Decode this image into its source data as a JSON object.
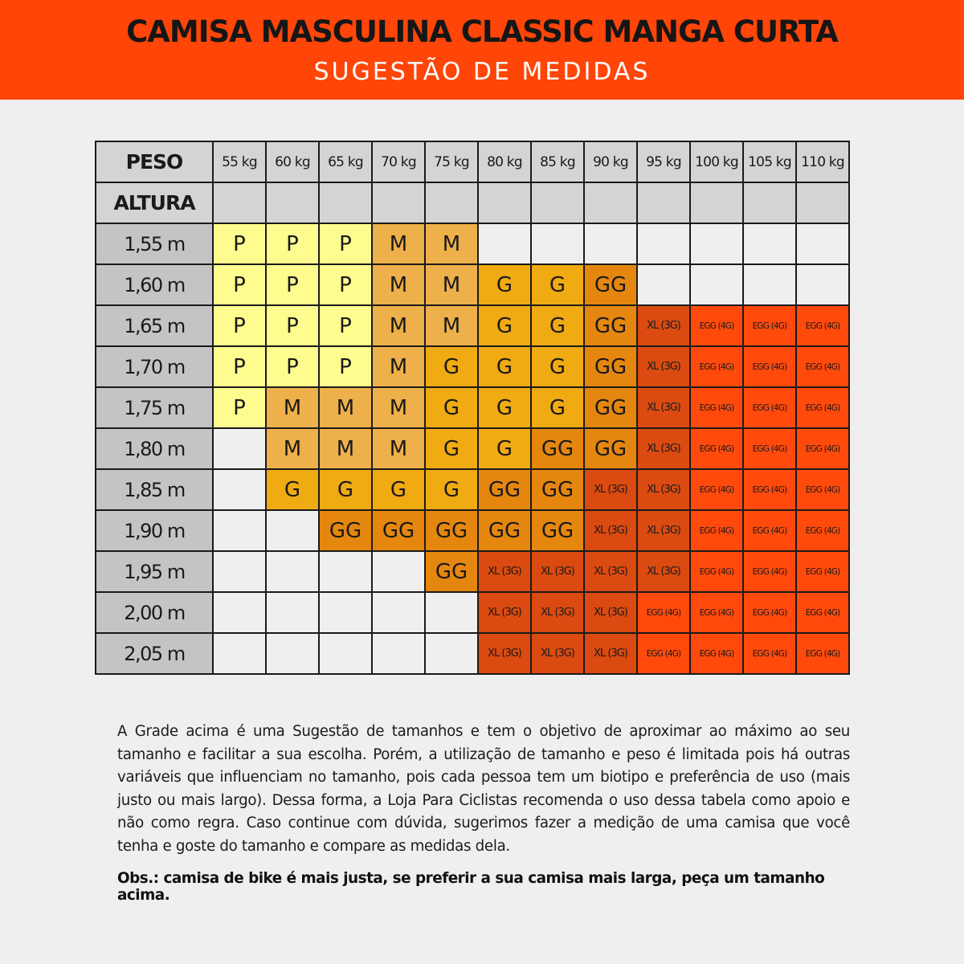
{
  "header": {
    "title": "CAMISA MASCULINA CLASSIC MANGA CURTA",
    "subtitle": "SUGESTÃO DE MEDIDAS",
    "banner_color": "#ff4508"
  },
  "table": {
    "weight_label": "PESO",
    "height_label": "ALTURA",
    "weights": [
      "55 kg",
      "60 kg",
      "65 kg",
      "70 kg",
      "75 kg",
      "80 kg",
      "85 kg",
      "90 kg",
      "95 kg",
      "100 kg",
      "105 kg",
      "110 kg"
    ],
    "size_colors": {
      "P": "#fefc8e",
      "M": "#eeb04a",
      "G": "#f0aa12",
      "GG": "#e5870e",
      "XL (3G)": "#db4a10",
      "EGG (4G)": "#ff4a0c",
      "": "#efefef"
    },
    "rows": [
      {
        "height": "1,55 m",
        "sizes": [
          "P",
          "P",
          "P",
          "M",
          "M",
          "",
          "",
          "",
          "",
          "",
          "",
          ""
        ]
      },
      {
        "height": "1,60 m",
        "sizes": [
          "P",
          "P",
          "P",
          "M",
          "M",
          "G",
          "G",
          "GG",
          "",
          "",
          "",
          ""
        ]
      },
      {
        "height": "1,65 m",
        "sizes": [
          "P",
          "P",
          "P",
          "M",
          "M",
          "G",
          "G",
          "GG",
          "XL (3G)",
          "EGG (4G)",
          "EGG (4G)",
          "EGG (4G)"
        ]
      },
      {
        "height": "1,70 m",
        "sizes": [
          "P",
          "P",
          "P",
          "M",
          "G",
          "G",
          "G",
          "GG",
          "XL (3G)",
          "EGG (4G)",
          "EGG (4G)",
          "EGG (4G)"
        ]
      },
      {
        "height": "1,75 m",
        "sizes": [
          "P",
          "M",
          "M",
          "M",
          "G",
          "G",
          "G",
          "GG",
          "XL (3G)",
          "EGG (4G)",
          "EGG (4G)",
          "EGG (4G)"
        ]
      },
      {
        "height": "1,80 m",
        "sizes": [
          "",
          "M",
          "M",
          "M",
          "G",
          "G",
          "GG",
          "GG",
          "XL (3G)",
          "EGG (4G)",
          "EGG (4G)",
          "EGG (4G)"
        ]
      },
      {
        "height": "1,85 m",
        "sizes": [
          "",
          "G",
          "G",
          "G",
          "G",
          "GG",
          "GG",
          "XL (3G)",
          "XL (3G)",
          "EGG (4G)",
          "EGG (4G)",
          "EGG (4G)"
        ]
      },
      {
        "height": "1,90 m",
        "sizes": [
          "",
          "",
          "GG",
          "GG",
          "GG",
          "GG",
          "GG",
          "XL (3G)",
          "XL (3G)",
          "EGG (4G)",
          "EGG (4G)",
          "EGG (4G)"
        ]
      },
      {
        "height": "1,95 m",
        "sizes": [
          "",
          "",
          "",
          "",
          "GG",
          "XL (3G)",
          "XL (3G)",
          "XL (3G)",
          "XL (3G)",
          "EGG (4G)",
          "EGG (4G)",
          "EGG (4G)"
        ]
      },
      {
        "height": "2,00 m",
        "sizes": [
          "",
          "",
          "",
          "",
          "",
          "XL (3G)",
          "XL (3G)",
          "XL (3G)",
          "EGG (4G)",
          "EGG (4G)",
          "EGG (4G)",
          "EGG (4G)"
        ]
      },
      {
        "height": "2,05 m",
        "sizes": [
          "",
          "",
          "",
          "",
          "",
          "XL (3G)",
          "XL (3G)",
          "XL (3G)",
          "EGG (4G)",
          "EGG (4G)",
          "EGG (4G)",
          "EGG (4G)"
        ]
      }
    ]
  },
  "footer": {
    "note": "A Grade acima é uma Sugestão de tamanhos e tem o objetivo de aproximar ao máximo ao seu tamanho e facilitar a sua escolha. Porém, a utilização de tamanho e peso é limitada pois há outras variáveis que influenciam no tamanho, pois cada pessoa tem um biotipo e preferência de uso (mais justo ou mais largo). Dessa forma, a Loja Para Ciclistas recomenda o uso dessa tabela como apoio e não como regra. Caso continue com dúvida, sugerimos fazer a medição de uma camisa que você tenha e goste do tamanho e compare as medidas dela.",
    "obs": "Obs.: camisa de bike é mais justa, se preferir a sua camisa mais larga, peça um tamanho acima."
  }
}
